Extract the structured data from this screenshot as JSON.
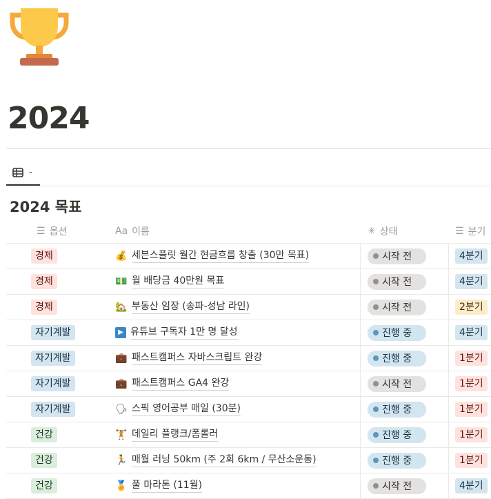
{
  "page": {
    "icon": "trophy-icon",
    "title": "2024"
  },
  "view_tab": {
    "icon": "table-icon",
    "label": "-"
  },
  "database": {
    "title": "2024 목표",
    "columns": [
      {
        "icon": "list-icon",
        "label": "옵션"
      },
      {
        "icon": "text-aa-icon",
        "label": "이름"
      },
      {
        "icon": "status-spinner-icon",
        "label": "상태"
      },
      {
        "icon": "list-icon",
        "label": "분기"
      }
    ],
    "rows": [
      {
        "option": "경제",
        "icon": "💰",
        "name": "세븐스플릿 월간 현금흐름 창출 (30만 목표)",
        "status": "시작 전",
        "quarter": "4분기"
      },
      {
        "option": "경제",
        "icon": "💵",
        "name": "월 배당금 40만원 목표",
        "status": "시작 전",
        "quarter": "4분기"
      },
      {
        "option": "경제",
        "icon": "🏡",
        "name": "부동산 임장 (송파-성남 라인)",
        "status": "시작 전",
        "quarter": "2분기"
      },
      {
        "option": "자기계발",
        "icon": "▶",
        "name": "유튜브 구독자 1만 명 달성",
        "status": "진행 중",
        "quarter": "4분기"
      },
      {
        "option": "자기계발",
        "icon": "💼",
        "name": "패스트캠퍼스 자바스크립트 완강",
        "status": "진행 중",
        "quarter": "1분기"
      },
      {
        "option": "자기계발",
        "icon": "💼",
        "name": "패스트캠퍼스 GA4 완강",
        "status": "시작 전",
        "quarter": "1분기"
      },
      {
        "option": "자기계발",
        "icon": "🗣",
        "name": "스픽 영어공부 매일 (30분)",
        "status": "진행 중",
        "quarter": "1분기"
      },
      {
        "option": "건강",
        "icon": "🏋",
        "name": "데일리 플랭크/폼롤러",
        "status": "진행 중",
        "quarter": "1분기"
      },
      {
        "option": "건강",
        "icon": "🏃",
        "name": "매월 러닝 50km (주 2회 6km / 무산소운동)",
        "status": "진행 중",
        "quarter": "1분기"
      },
      {
        "option": "건강",
        "icon": "🏅",
        "name": "풀 마라톤 (11월)",
        "status": "시작 전",
        "quarter": "4분기"
      }
    ]
  },
  "colors": {
    "경제": [
      "#ffe2dd",
      "#5d1715"
    ],
    "자기계발": [
      "#d3e5ef",
      "#183347"
    ],
    "건강": [
      "#dbeddb",
      "#1c3829"
    ],
    "1분기": [
      "#ffe2dd",
      "#5d1715"
    ],
    "2분기": [
      "#fdecc8",
      "#402c1b"
    ],
    "4분기": [
      "#d3e5ef",
      "#183347"
    ],
    "시작 전": [
      "#e3e2e0",
      "#32302c",
      "#91918e"
    ],
    "진행 중": [
      "#d3e5ef",
      "#183347",
      "#5b97bd"
    ]
  }
}
